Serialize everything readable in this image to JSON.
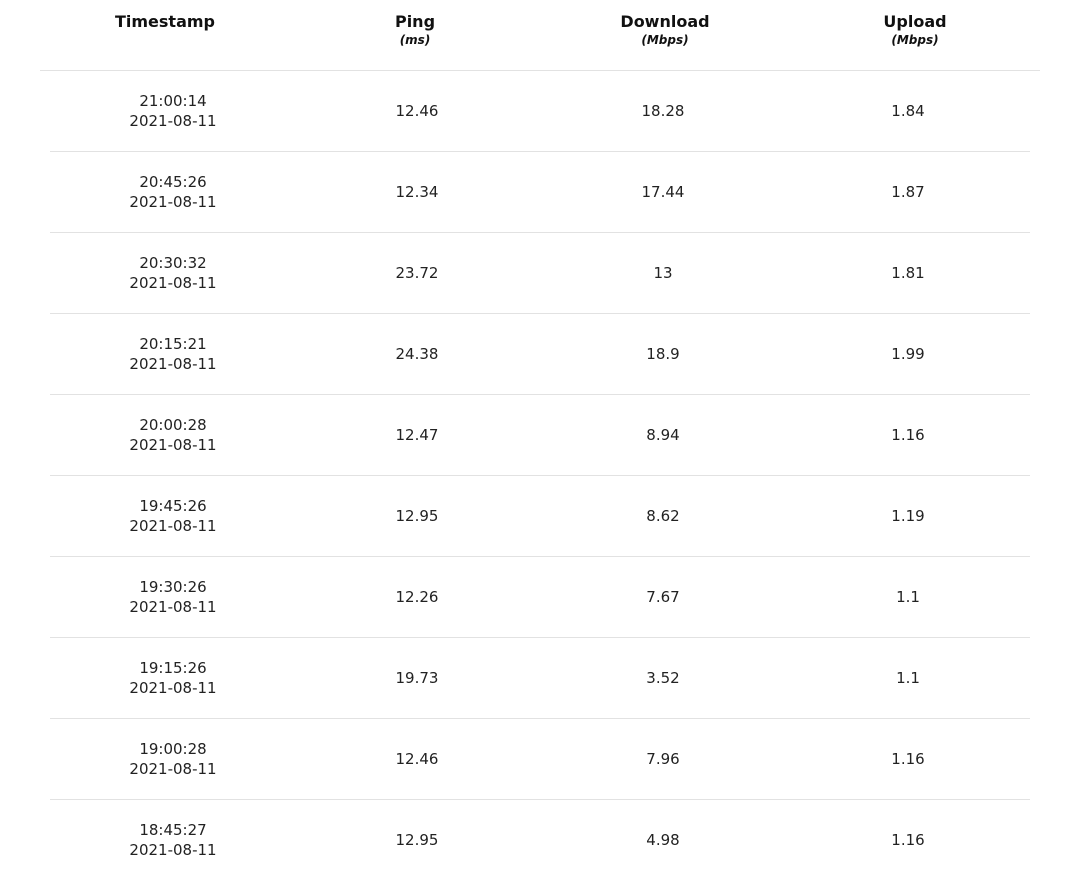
{
  "headers": {
    "timestamp": {
      "title": "Timestamp",
      "unit": ""
    },
    "ping": {
      "title": "Ping",
      "unit": "(ms)"
    },
    "download": {
      "title": "Download",
      "unit": "(Mbps)"
    },
    "upload": {
      "title": "Upload",
      "unit": "(Mbps)"
    }
  },
  "rows": [
    {
      "time": "21:00:14",
      "date": "2021-08-11",
      "ping": "12.46",
      "download": "18.28",
      "upload": "1.84"
    },
    {
      "time": "20:45:26",
      "date": "2021-08-11",
      "ping": "12.34",
      "download": "17.44",
      "upload": "1.87"
    },
    {
      "time": "20:30:32",
      "date": "2021-08-11",
      "ping": "23.72",
      "download": "13",
      "upload": "1.81"
    },
    {
      "time": "20:15:21",
      "date": "2021-08-11",
      "ping": "24.38",
      "download": "18.9",
      "upload": "1.99"
    },
    {
      "time": "20:00:28",
      "date": "2021-08-11",
      "ping": "12.47",
      "download": "8.94",
      "upload": "1.16"
    },
    {
      "time": "19:45:26",
      "date": "2021-08-11",
      "ping": "12.95",
      "download": "8.62",
      "upload": "1.19"
    },
    {
      "time": "19:30:26",
      "date": "2021-08-11",
      "ping": "12.26",
      "download": "7.67",
      "upload": "1.1"
    },
    {
      "time": "19:15:26",
      "date": "2021-08-11",
      "ping": "19.73",
      "download": "3.52",
      "upload": "1.1"
    },
    {
      "time": "19:00:28",
      "date": "2021-08-11",
      "ping": "12.46",
      "download": "7.96",
      "upload": "1.16"
    },
    {
      "time": "18:45:27",
      "date": "2021-08-11",
      "ping": "12.95",
      "download": "4.98",
      "upload": "1.16"
    }
  ]
}
